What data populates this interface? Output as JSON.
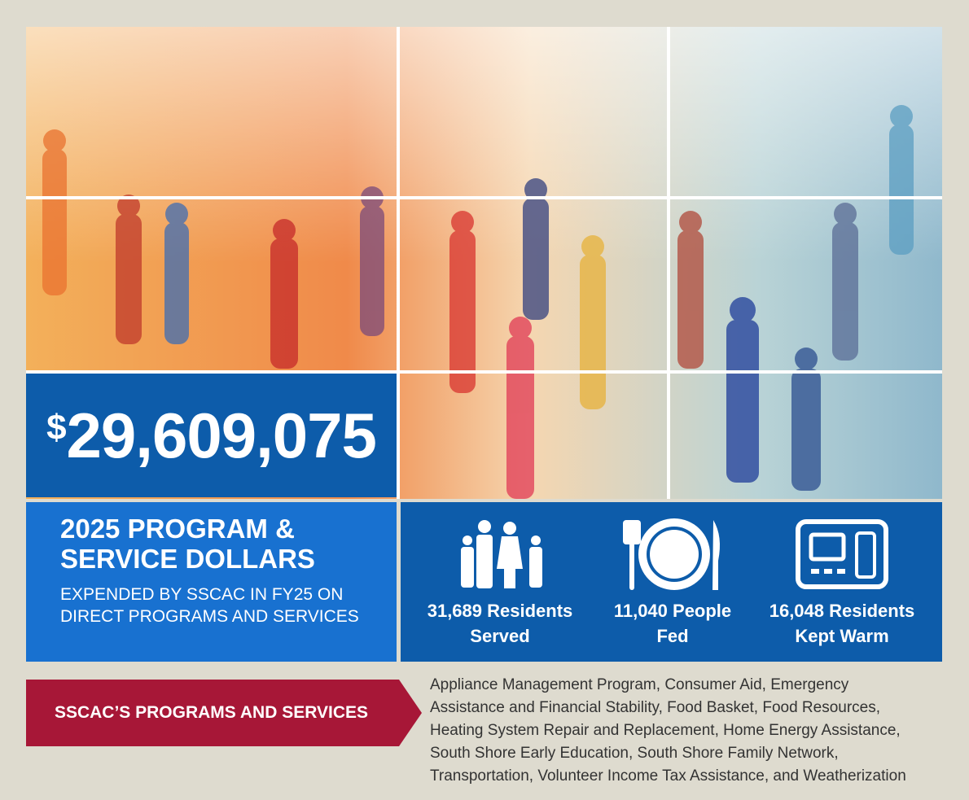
{
  "headline": {
    "currency": "$",
    "amount": "29,609,075"
  },
  "summary": {
    "title_lines": [
      "2025 PROGRAM &",
      "SERVICE DOLLARS"
    ],
    "subtitle_lines": [
      "EXPENDED BY SSCAC IN FY25 ON",
      "DIRECT PROGRAMS AND SERVICES"
    ]
  },
  "stats": [
    {
      "lines": [
        "31,689 Residents",
        "Served"
      ]
    },
    {
      "lines": [
        "11,040 People",
        "Fed"
      ]
    },
    {
      "lines": [
        "16,048 Residents",
        "Kept Warm"
      ]
    }
  ],
  "programs": {
    "banner": "SSCAC’S PROGRAMS AND SERVICES",
    "text": "Appliance Management Program, Consumer Aid, Emergency Assistance and Financial Stability, Food Basket, Food Resources, Heating System Repair and Replacement, Home Energy Assistance, South Shore Early Education, South Shore Family Network, Transportation, Volunteer Income Tax Assistance, and Weatherization"
  }
}
